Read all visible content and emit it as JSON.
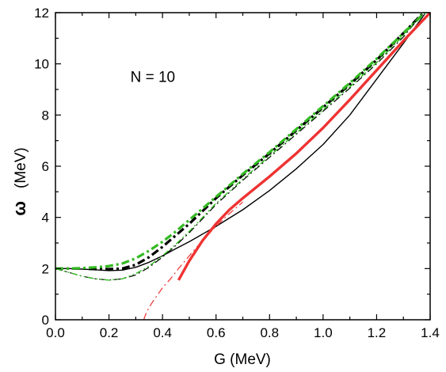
{
  "chart_data": {
    "type": "line",
    "xlabel": "G (MeV)",
    "ylabel_symbol": "ω",
    "ylabel_unit": "(MeV)",
    "xlim": [
      0.0,
      1.4
    ],
    "ylim": [
      0,
      12
    ],
    "xticks": [
      0.0,
      0.2,
      0.4,
      0.6,
      0.8,
      1.0,
      1.2,
      1.4
    ],
    "xtick_labels": [
      "0.0",
      "0.2",
      "0.4",
      "0.6",
      "0.8",
      "1.0",
      "1.2",
      "1.4"
    ],
    "yticks": [
      0,
      2,
      4,
      6,
      8,
      10,
      12
    ],
    "ytick_labels": [
      "0",
      "2",
      "4",
      "6",
      "8",
      "10",
      "12"
    ],
    "grid": false,
    "legend": "none",
    "annotations": [
      {
        "text": "N = 10",
        "x": 0.28,
        "y": 9.3
      }
    ],
    "series": [
      {
        "color": "#000000",
        "style": "solid",
        "width": 1.4,
        "x": [
          0.0,
          0.05,
          0.1,
          0.15,
          0.2,
          0.25,
          0.3,
          0.35,
          0.4,
          0.45,
          0.5,
          0.55,
          0.6,
          0.7,
          0.8,
          0.9,
          1.0,
          1.1,
          1.2,
          1.3,
          1.38
        ],
        "y": [
          2.0,
          2.0,
          1.98,
          1.95,
          1.92,
          1.94,
          2.05,
          2.25,
          2.5,
          2.78,
          3.05,
          3.35,
          3.65,
          4.3,
          5.05,
          5.9,
          6.85,
          8.0,
          9.4,
          10.8,
          11.95
        ]
      },
      {
        "color": "#000000",
        "style": "dashdot",
        "width": 3.2,
        "x": [
          0.0,
          0.05,
          0.1,
          0.15,
          0.2,
          0.25,
          0.3,
          0.35,
          0.4,
          0.45,
          0.5,
          0.55,
          0.6,
          0.7,
          0.8,
          0.9,
          1.0,
          1.1,
          1.2,
          1.3,
          1.37
        ],
        "y": [
          2.0,
          2.0,
          2.0,
          1.98,
          1.98,
          2.0,
          2.15,
          2.45,
          2.85,
          3.3,
          3.75,
          4.25,
          4.75,
          5.65,
          6.5,
          7.4,
          8.3,
          9.2,
          10.15,
          11.2,
          11.95
        ]
      },
      {
        "color": "#33bb22",
        "style": "dashdot",
        "width": 3.2,
        "x": [
          0.0,
          0.05,
          0.1,
          0.15,
          0.2,
          0.25,
          0.3,
          0.35,
          0.4,
          0.45,
          0.5,
          0.55,
          0.6,
          0.7,
          0.8,
          0.9,
          1.0,
          1.1,
          1.2,
          1.3,
          1.38
        ],
        "y": [
          2.0,
          2.0,
          2.02,
          2.05,
          2.1,
          2.2,
          2.4,
          2.7,
          3.05,
          3.45,
          3.9,
          4.35,
          4.8,
          5.7,
          6.55,
          7.45,
          8.35,
          9.25,
          10.2,
          11.2,
          12.0
        ]
      },
      {
        "color": "#000000",
        "style": "dashdotthin",
        "width": 1.2,
        "x": [
          0.0,
          0.05,
          0.1,
          0.15,
          0.2,
          0.25,
          0.3,
          0.35,
          0.4,
          0.45,
          0.5,
          0.55,
          0.6,
          0.7,
          0.8,
          0.9,
          1.0,
          1.1,
          1.2,
          1.3,
          1.37
        ],
        "y": [
          2.0,
          1.85,
          1.7,
          1.6,
          1.55,
          1.6,
          1.75,
          2.05,
          2.45,
          2.9,
          3.4,
          3.95,
          4.5,
          5.45,
          6.35,
          7.25,
          8.15,
          9.05,
          10.0,
          11.05,
          11.95
        ]
      },
      {
        "color": "#33bb22",
        "style": "dashdotdot",
        "width": 1.4,
        "x": [
          0.0,
          0.05,
          0.1,
          0.15,
          0.2,
          0.25,
          0.3,
          0.35,
          0.4,
          0.45,
          0.5,
          0.55,
          0.6,
          0.7,
          0.8,
          0.9,
          1.0,
          1.1,
          1.2,
          1.3,
          1.37
        ],
        "y": [
          2.0,
          1.85,
          1.7,
          1.6,
          1.55,
          1.6,
          1.8,
          2.1,
          2.5,
          2.95,
          3.45,
          4.0,
          4.55,
          5.5,
          6.4,
          7.3,
          8.2,
          9.1,
          10.05,
          11.1,
          11.95
        ]
      },
      {
        "color": "#ee3333",
        "style": "solid",
        "width": 3.4,
        "x": [
          0.46,
          0.5,
          0.55,
          0.6,
          0.65,
          0.7,
          0.8,
          0.9,
          1.0,
          1.1,
          1.2,
          1.3,
          1.4
        ],
        "y": [
          1.55,
          2.3,
          3.1,
          3.75,
          4.3,
          4.75,
          5.6,
          6.5,
          7.5,
          8.6,
          9.75,
          10.9,
          12.0
        ]
      },
      {
        "color": "#ee3333",
        "style": "dashdotthin",
        "width": 1.2,
        "x": [
          0.33,
          0.34,
          0.36,
          0.38,
          0.4,
          0.43,
          0.46,
          0.5,
          0.55,
          0.6,
          0.65,
          0.7
        ],
        "y": [
          0.0,
          0.3,
          0.65,
          0.95,
          1.25,
          1.6,
          2.0,
          2.5,
          3.1,
          3.65,
          4.15,
          4.6
        ]
      }
    ]
  }
}
